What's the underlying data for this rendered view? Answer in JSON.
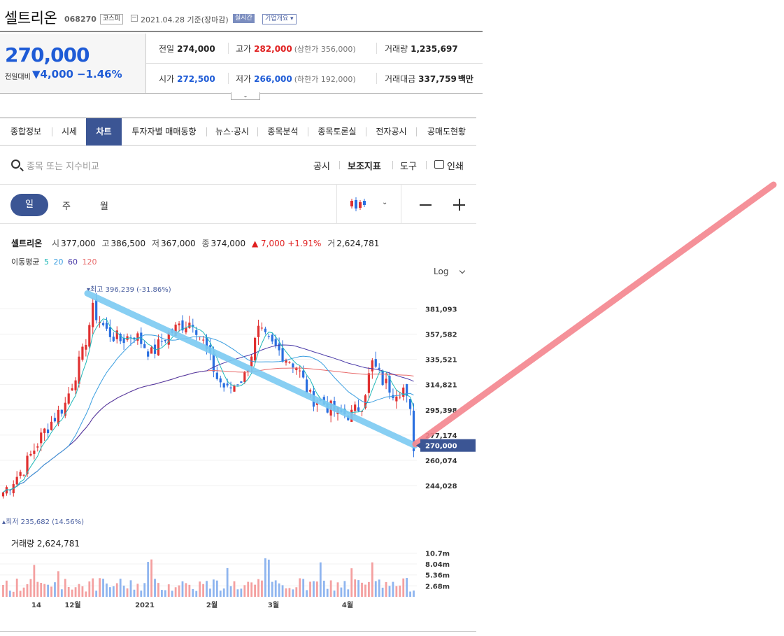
{
  "header": {
    "name": "셀트리온",
    "code": "068270",
    "market": "코스피",
    "date": "2021.04.28 기준(장마감)",
    "realtime": "실시간",
    "corp_btn": "기업개요 ▾"
  },
  "quote": {
    "price": "270,000",
    "change_label": "전일대비",
    "change_value": "▼4,000",
    "change_pct": "−1.46%",
    "prev_label": "전일",
    "prev": "274,000",
    "high_label": "고가",
    "high": "282,000",
    "upper_limit": "(상한가 356,000)",
    "volume_label": "거래량",
    "volume": "1,235,697",
    "open_label": "시가",
    "open": "272,500",
    "low_label": "저가",
    "low": "266,000",
    "lower_limit": "(하한가 192,000)",
    "amount_label": "거래대금",
    "amount": "337,759",
    "amount_unit": "백만",
    "toggle": "⌄"
  },
  "tabs": [
    "종합정보",
    "시세",
    "차트",
    "투자자별 매매동향",
    "뉴스·공시",
    "종목분석",
    "종목토론실",
    "전자공시",
    "공매도현황"
  ],
  "active_tab": 2,
  "toolbar": {
    "search_placeholder": "종목 또는 지수비교",
    "disclosure": "공시",
    "indicator": "보조지표",
    "tools": "도구",
    "print": "인쇄"
  },
  "period": {
    "day": "일",
    "week": "주",
    "month": "월"
  },
  "info": {
    "name": "셀트리온",
    "open_k": "시",
    "open": "377,000",
    "high_k": "고",
    "high": "386,500",
    "low_k": "저",
    "low": "367,000",
    "close_k": "종",
    "close": "374,000",
    "change": "▲ 7,000 +1.91%",
    "vol_k": "거",
    "vol": "2,624,781"
  },
  "ma": {
    "label": "이동평균",
    "p5": "5",
    "p20": "20",
    "p60": "60",
    "p120": "120",
    "c5": "#20b8b8",
    "c20": "#3a9ee0",
    "c60": "#4a3aa8",
    "c120": "#e86a6a"
  },
  "scale_mode": "Log",
  "volume_label": "거래량 2,624,781",
  "chart_data": {
    "type": "candlestick",
    "y_scale": "log",
    "y_ticks": [
      "381,093",
      "357,582",
      "335,521",
      "314,821",
      "295,398",
      "277,174",
      "260,074",
      "244,028"
    ],
    "y_tick_values": [
      381093,
      357582,
      335521,
      314821,
      295398,
      277174,
      260074,
      244028
    ],
    "current_price_label": "270,000",
    "current_price": 270000,
    "max_label": "최고 396,239 (-31.86%)",
    "max_value": 396239,
    "min_label": "최저 235,682 (14.56%)",
    "min_value": 235682,
    "x_labels": [
      "14",
      "12월",
      "2021",
      "2월",
      "3월",
      "4월"
    ],
    "volume_ticks": [
      "10.7m",
      "8.04m",
      "5.36m",
      "2.68m"
    ],
    "volume_tick_values": [
      10700000,
      8040000,
      5360000,
      2680000
    ],
    "trend_down": {
      "from": 396239,
      "to": 270000
    },
    "colors": {
      "up": "#e03030",
      "down": "#2a6fe0",
      "trend": "#7ccaf2",
      "arrow": "#f5868e",
      "badge": "#3b5594"
    }
  }
}
